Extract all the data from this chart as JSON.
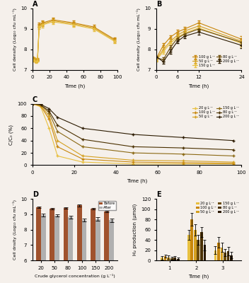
{
  "panel_A": {
    "title": "A",
    "xlabel": "Time (h)",
    "ylabel": "Cell density (Log₁₀ cfu mL⁻¹)",
    "lines": [
      {
        "x": [
          0,
          2,
          4,
          6,
          8,
          12,
          24,
          48,
          72,
          96
        ],
        "y": [
          7.55,
          7.5,
          7.45,
          7.48,
          9.2,
          9.3,
          9.45,
          9.3,
          9.1,
          8.5
        ],
        "ye": [
          0.05,
          0.08,
          0.06,
          0.05,
          0.1,
          0.12,
          0.1,
          0.1,
          0.1,
          0.1
        ],
        "color": "#c8860a"
      },
      {
        "x": [
          0,
          2,
          4,
          6,
          8,
          12,
          24,
          48,
          72,
          96
        ],
        "y": [
          7.6,
          7.55,
          7.5,
          7.52,
          9.15,
          9.25,
          9.4,
          9.25,
          9.05,
          8.45
        ],
        "ye": [
          0.05,
          0.08,
          0.06,
          0.05,
          0.1,
          0.12,
          0.1,
          0.1,
          0.1,
          0.1
        ],
        "color": "#d4a020"
      },
      {
        "x": [
          0,
          2,
          4,
          6,
          8,
          12,
          24,
          48,
          72,
          96
        ],
        "y": [
          7.5,
          7.48,
          7.4,
          7.45,
          9.1,
          9.2,
          9.35,
          9.2,
          9.0,
          8.4
        ],
        "ye": [
          0.05,
          0.08,
          0.06,
          0.05,
          0.1,
          0.12,
          0.1,
          0.1,
          0.1,
          0.1
        ],
        "color": "#e8c040"
      }
    ],
    "ylim": [
      7.0,
      10.0
    ],
    "xlim": [
      0,
      100
    ],
    "yticks": [
      7,
      8,
      9,
      10
    ]
  },
  "panel_B": {
    "title": "B",
    "xlabel": "Time (h)",
    "ylabel": "Cell density (Log₁₀ cfu mL⁻¹)",
    "legend_labels": [
      "100 g L⁻¹",
      "50 g L⁻¹",
      "150 g L⁻¹",
      "80 g L⁻¹",
      "200 g L⁻¹"
    ],
    "lines": [
      {
        "x": [
          0,
          2,
          4,
          6,
          8,
          12,
          24
        ],
        "y": [
          7.55,
          8.2,
          8.6,
          8.85,
          9.0,
          9.3,
          8.5
        ],
        "ye": [
          0.05,
          0.1,
          0.1,
          0.1,
          0.1,
          0.12,
          0.15
        ],
        "color": "#c8860a",
        "label": "100 g L⁻¹"
      },
      {
        "x": [
          0,
          2,
          4,
          6,
          8,
          12,
          24
        ],
        "y": [
          7.5,
          8.0,
          8.4,
          8.7,
          8.9,
          9.15,
          8.4
        ],
        "ye": [
          0.05,
          0.1,
          0.1,
          0.1,
          0.1,
          0.12,
          0.15
        ],
        "color": "#d4a020",
        "label": "50 g L⁻¹"
      },
      {
        "x": [
          0,
          2,
          4,
          6,
          8,
          12,
          24
        ],
        "y": [
          7.45,
          7.9,
          8.3,
          8.6,
          8.8,
          9.05,
          8.3
        ],
        "ye": [
          0.05,
          0.1,
          0.1,
          0.1,
          0.1,
          0.12,
          0.15
        ],
        "color": "#e8c040",
        "label": "150 g L⁻¹"
      },
      {
        "x": [
          0,
          2,
          4,
          6,
          8,
          12,
          24
        ],
        "y": [
          7.6,
          7.5,
          8.1,
          8.55,
          8.75,
          9.0,
          8.35
        ],
        "ye": [
          0.05,
          0.1,
          0.1,
          0.1,
          0.1,
          0.12,
          0.15
        ],
        "color": "#6b4c0a",
        "label": "80 g L⁻¹"
      },
      {
        "x": [
          0,
          2,
          4,
          6,
          8,
          12,
          24
        ],
        "y": [
          7.65,
          7.4,
          7.9,
          8.4,
          8.65,
          8.85,
          8.2
        ],
        "ye": [
          0.05,
          0.1,
          0.1,
          0.1,
          0.1,
          0.12,
          0.15
        ],
        "color": "#2b1a00",
        "label": "200 g L⁻¹"
      }
    ],
    "ylim": [
      7.0,
      10.0
    ],
    "xlim": [
      0,
      24
    ],
    "xticks": [
      0,
      6,
      12,
      24
    ],
    "yticks": [
      7,
      8,
      9,
      10
    ]
  },
  "panel_C": {
    "title": "C",
    "xlabel": "Time (h)",
    "ylabel": "C/C₀ (%)",
    "legend_labels": [
      "20 g L⁻¹",
      "100 g L⁻¹",
      "50 g L⁻¹",
      "150 g L⁻¹",
      "80 g L⁻¹",
      "200 g L⁻¹"
    ],
    "lines": [
      {
        "x": [
          0,
          4,
          8,
          12,
          24,
          48,
          72,
          96
        ],
        "y": [
          100,
          95,
          60,
          15,
          5,
          2,
          2,
          2
        ],
        "color": "#e8c040",
        "label": "20 g L⁻¹"
      },
      {
        "x": [
          0,
          4,
          8,
          12,
          24,
          48,
          72,
          96
        ],
        "y": [
          100,
          96,
          75,
          30,
          10,
          5,
          4,
          3
        ],
        "color": "#c8860a",
        "label": "100 g L⁻¹"
      },
      {
        "x": [
          0,
          4,
          8,
          12,
          24,
          48,
          72,
          96
        ],
        "y": [
          100,
          97,
          80,
          40,
          15,
          8,
          7,
          5
        ],
        "color": "#d4a020",
        "label": "50 g L⁻¹"
      },
      {
        "x": [
          0,
          4,
          8,
          12,
          24,
          48,
          72,
          96
        ],
        "y": [
          100,
          98,
          85,
          55,
          30,
          20,
          18,
          15
        ],
        "color": "#8B6914",
        "label": "150 g L⁻¹"
      },
      {
        "x": [
          0,
          4,
          8,
          12,
          24,
          48,
          72,
          96
        ],
        "y": [
          100,
          98,
          88,
          65,
          42,
          30,
          28,
          25
        ],
        "color": "#4a3000",
        "label": "80 g L⁻¹"
      },
      {
        "x": [
          0,
          4,
          8,
          12,
          24,
          48,
          72,
          96
        ],
        "y": [
          100,
          99,
          92,
          78,
          60,
          50,
          45,
          40
        ],
        "color": "#2b1a00",
        "label": "200 g L⁻¹"
      }
    ],
    "ylim": [
      0,
      100
    ],
    "xlim": [
      0,
      100
    ],
    "yticks": [
      0,
      20,
      40,
      60,
      80,
      100
    ]
  },
  "panel_D": {
    "title": "D",
    "xlabel": "Crude glycerol concentration (g L⁻¹)",
    "ylabel": "Cell dnsity (Log₁₀ cfu mL⁻¹)",
    "categories": [
      "20",
      "50",
      "80",
      "100",
      "150",
      "200"
    ],
    "before": [
      9.45,
      9.38,
      9.4,
      9.58,
      9.38,
      9.18
    ],
    "after": [
      8.95,
      8.92,
      8.8,
      8.62,
      8.68,
      8.62
    ],
    "before_err": [
      0.05,
      0.05,
      0.05,
      0.07,
      0.05,
      0.05
    ],
    "after_err": [
      0.08,
      0.08,
      0.1,
      0.1,
      0.12,
      0.12
    ],
    "before_color": "#a0522d",
    "after_color": "#b0b0b0",
    "ylim": [
      6.0,
      10.0
    ],
    "yticks": [
      6,
      7,
      8,
      9,
      10
    ]
  },
  "panel_E": {
    "title": "E",
    "xlabel": "Time (h)",
    "ylabel": "H₂ production (μmol)",
    "legend_labels": [
      "20 g L⁻¹",
      "100 g L⁻¹",
      "50 g L⁻¹",
      "150 g L⁻¹",
      "80 g L⁻¹",
      "200 g L⁻¹"
    ],
    "groups": [
      {
        "label": "20 g L⁻¹",
        "color": "#e8c040",
        "x": [
          0.72,
          1.72,
          2.72
        ],
        "y": [
          5,
          50,
          20
        ],
        "ye": [
          3,
          10,
          8
        ]
      },
      {
        "label": "100 g L⁻¹",
        "color": "#c8860a",
        "x": [
          0.84,
          1.84,
          2.84
        ],
        "y": [
          8,
          80,
          35
        ],
        "ye": [
          3,
          12,
          10
        ]
      },
      {
        "label": "50 g L⁻¹",
        "color": "#d4a020",
        "x": [
          0.96,
          1.96,
          2.96
        ],
        "y": [
          6,
          60,
          25
        ],
        "ye": [
          3,
          11,
          9
        ]
      },
      {
        "label": "150 g L⁻¹",
        "color": "#6b4c0a",
        "x": [
          1.08,
          2.08,
          3.08
        ],
        "y": [
          4,
          40,
          15
        ],
        "ye": [
          3,
          10,
          7
        ]
      },
      {
        "label": "80 g L⁻¹",
        "color": "#4a3000",
        "x": [
          1.2,
          2.2,
          3.2
        ],
        "y": [
          5,
          55,
          18
        ],
        "ye": [
          3,
          10,
          8
        ]
      },
      {
        "label": "200 g L⁻¹",
        "color": "#2b1a00",
        "x": [
          1.32,
          2.32,
          3.32
        ],
        "y": [
          3,
          30,
          10
        ],
        "ye": [
          3,
          10,
          6
        ]
      }
    ],
    "ylim": [
      0,
      120
    ],
    "xlim": [
      0.5,
      3.7
    ],
    "xticks": [
      1,
      2,
      3
    ],
    "yticks": [
      0,
      20,
      40,
      60,
      80,
      100,
      120
    ]
  },
  "bg_color": "#f5f0eb"
}
